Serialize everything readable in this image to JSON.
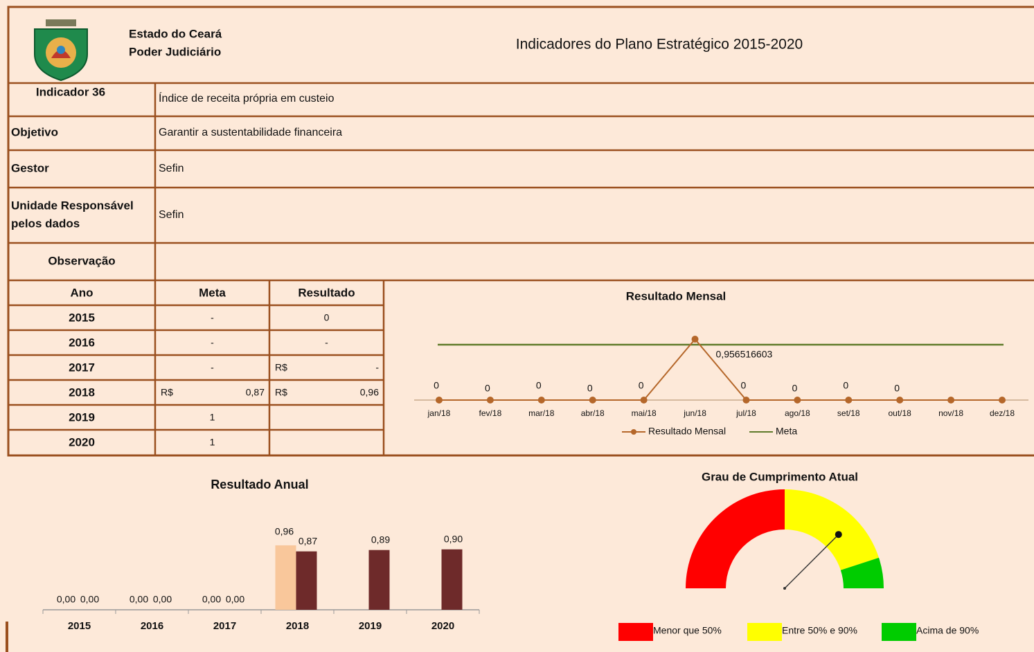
{
  "header": {
    "org": [
      "Estado do Ceará",
      "Poder Judiciário"
    ],
    "title": "Indicadores do Plano Estratégico 2015-2020"
  },
  "info": [
    {
      "label": "Indicador 36",
      "value": "Índice de receita própria em custeio"
    },
    {
      "label": "Objetivo",
      "value": "Garantir a sustentabilidade financeira"
    },
    {
      "label": "Gestor",
      "value": "Sefin"
    },
    {
      "label": [
        "Unidade Responsável",
        "pelos dados"
      ],
      "value": "Sefin"
    },
    {
      "label": "Observação"
    }
  ],
  "table": {
    "headers": [
      "Ano",
      "Meta",
      "Resultado"
    ],
    "rows": [
      [
        "2015",
        "-",
        "0"
      ],
      [
        "2016",
        "-",
        "-"
      ],
      [
        "2017",
        "-",
        [
          "R$",
          "-"
        ]
      ],
      [
        "2018",
        [
          "R$",
          "0,87"
        ],
        [
          "R$",
          "0,96"
        ]
      ],
      [
        "2019",
        "1"
      ],
      [
        "2020",
        "1"
      ]
    ]
  },
  "chart_data": [
    {
      "type": "line",
      "title": "Resultado Mensal",
      "categories": [
        "jan/18",
        "fev/18",
        "mar/18",
        "abr/18",
        "mai/18",
        "jun/18",
        "jul/18",
        "ago/18",
        "set/18",
        "out/18",
        "nov/18",
        "dez/18"
      ],
      "series": [
        {
          "name": "Resultado Mensal",
          "color": "#b5672a",
          "markers": true,
          "values": [
            0,
            0,
            0,
            0,
            0,
            0.956516603,
            0,
            0,
            0,
            0,
            0,
            0
          ],
          "value_labels": [
            "0",
            "0",
            "0",
            "0",
            "0",
            "0,956516603",
            "0",
            "0",
            "0",
            "0",
            null,
            null
          ]
        },
        {
          "name": "Meta",
          "color": "#5f7a2a",
          "markers": false,
          "values": [
            0.87,
            0.87,
            0.87,
            0.87,
            0.87,
            0.87,
            0.87,
            0.87,
            0.87,
            0.87,
            0.87,
            0.87
          ]
        }
      ],
      "ylim": [
        0,
        1
      ]
    },
    {
      "type": "bar",
      "title": "Resultado Anual",
      "categories": [
        "2015",
        "2016",
        "2017",
        "2018",
        "2019",
        "2020"
      ],
      "series": [
        {
          "color": "#f9c79b",
          "values": [
            0,
            0,
            0,
            0.96,
            null,
            null
          ],
          "value_labels": [
            "0,00",
            "0,00",
            "0,00",
            "0,96",
            null,
            null
          ]
        },
        {
          "color": "#6e2a2a",
          "values": [
            0,
            0,
            0,
            0.87,
            0.89,
            0.9
          ],
          "value_labels": [
            "0,00",
            "0,00",
            "0,00",
            "0,87",
            "0,89",
            "0,90"
          ]
        }
      ],
      "ylim": [
        0,
        1
      ]
    },
    {
      "type": "gauge",
      "title": "Grau de Cumprimento Atual",
      "min": 0,
      "max": 100,
      "value": 75,
      "bands": [
        {
          "label": "Menor que 50%",
          "color": "#ff0000",
          "from": 0,
          "to": 50
        },
        {
          "label": "Entre 50% e 90%",
          "color": "#ffff00",
          "from": 50,
          "to": 90
        },
        {
          "label": "Acima de 90%",
          "color": "#00cc00",
          "from": 90,
          "to": 100
        }
      ]
    }
  ]
}
